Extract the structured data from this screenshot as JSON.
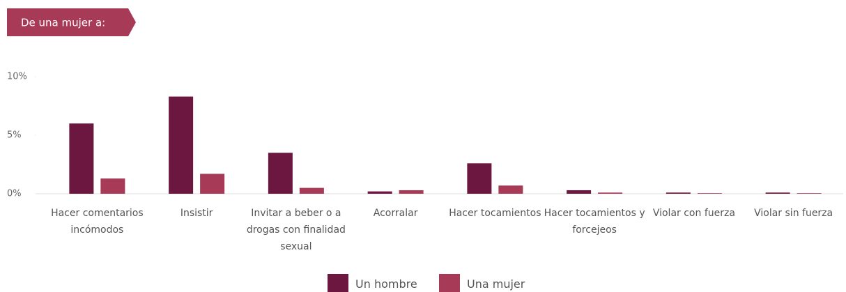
{
  "tag": "De una mujer a:",
  "chart_data": {
    "type": "bar",
    "categories": [
      "Hacer comentarios incómodos",
      "Insistir",
      "Invitar a beber o a drogas con finalidad sexual",
      "Acorralar",
      "Hacer tocamientos",
      "Hacer tocamientos y forcejeos",
      "Violar con fuerza",
      "Violar sin fuerza"
    ],
    "series": [
      {
        "name": "Un hombre",
        "color": "#6b1740",
        "values": [
          6.0,
          8.3,
          3.5,
          0.2,
          2.6,
          0.3,
          0.1,
          0.1
        ]
      },
      {
        "name": "Una mujer",
        "color": "#a63a57",
        "values": [
          1.3,
          1.7,
          0.5,
          0.3,
          0.7,
          0.1,
          0.05,
          0.05
        ]
      }
    ],
    "ylim": [
      0,
      10
    ],
    "yticks": [
      {
        "value": 0,
        "label": "0%"
      },
      {
        "value": 5,
        "label": "5%"
      },
      {
        "value": 10,
        "label": "10%"
      }
    ],
    "legend": "bottom"
  }
}
